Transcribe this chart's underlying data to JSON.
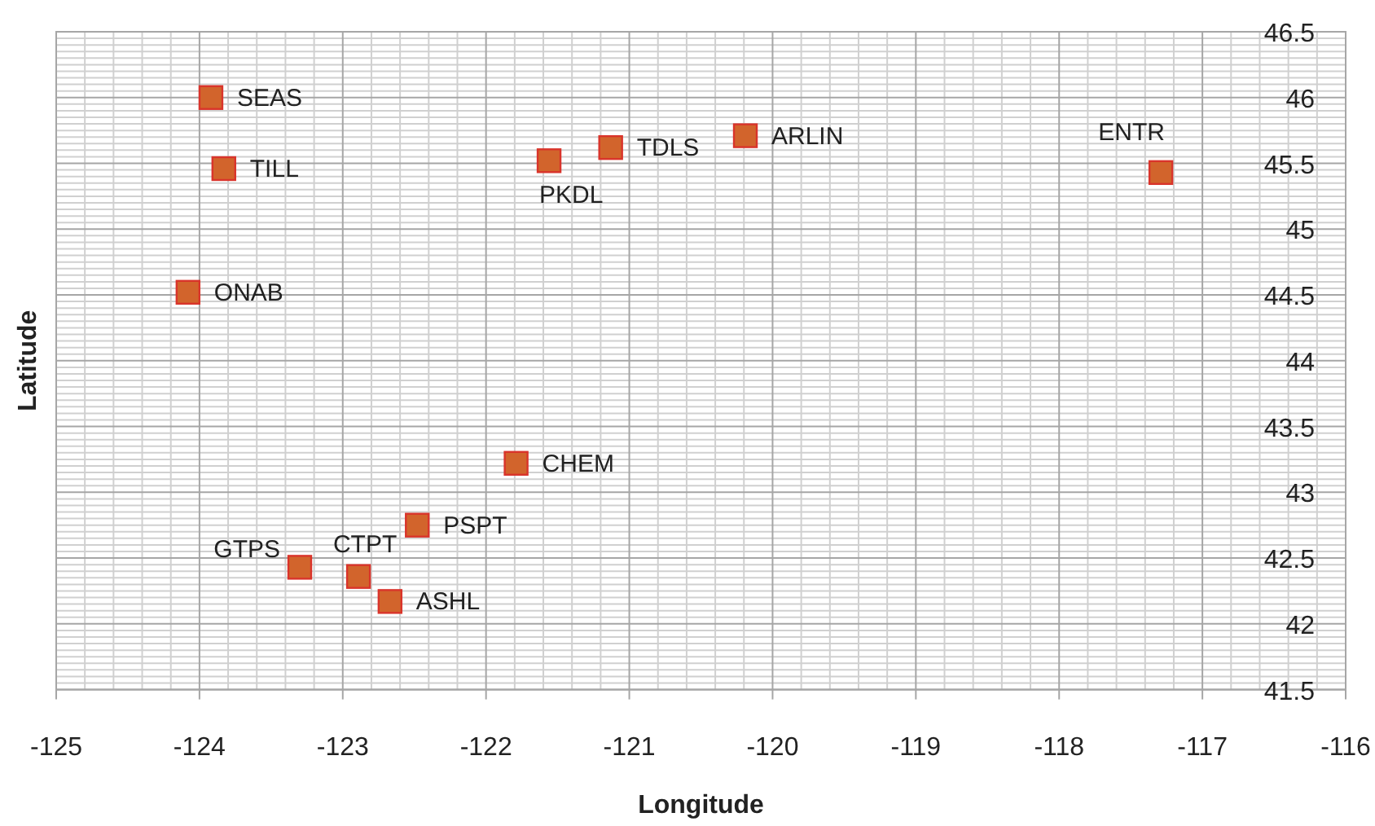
{
  "chart_data": {
    "type": "scatter",
    "xlabel": "Longitude",
    "ylabel": "Latitude",
    "xlim": [
      -125,
      -116
    ],
    "xticks": [
      -125,
      -124,
      -123,
      -122,
      -121,
      -120,
      -119,
      -118,
      -117,
      -116
    ],
    "ylim": [
      41.5,
      46.5
    ],
    "yticks": [
      41.5,
      42,
      42.5,
      43,
      43.5,
      44,
      44.5,
      45,
      45.5,
      46,
      46.5
    ],
    "grid": true,
    "marker": "square",
    "series": [
      {
        "color": "#d2642c",
        "x": [
          -123.92,
          -123.83,
          -124.08,
          -121.56,
          -121.13,
          -120.19,
          -117.29,
          -121.79,
          -122.48,
          -123.3,
          -122.89,
          -122.67
        ],
        "values": [
          46.0,
          45.46,
          44.52,
          45.52,
          45.62,
          45.71,
          45.43,
          43.22,
          42.75,
          42.43,
          42.36,
          42.17
        ]
      }
    ],
    "annotations": [
      {
        "text": "SEAS",
        "x": -123.92,
        "y": 46.0
      },
      {
        "text": "TILL",
        "x": -123.83,
        "y": 45.46
      },
      {
        "text": "ONAB",
        "x": -124.08,
        "y": 44.52
      },
      {
        "text": "PKDL",
        "x": -121.56,
        "y": 45.52
      },
      {
        "text": "TDLS",
        "x": -121.13,
        "y": 45.62
      },
      {
        "text": "ARLIN",
        "x": -120.19,
        "y": 45.71
      },
      {
        "text": "ENTR",
        "x": -117.29,
        "y": 45.43
      },
      {
        "text": "CHEM",
        "x": -121.79,
        "y": 43.22
      },
      {
        "text": "PSPT",
        "x": -122.48,
        "y": 42.75
      },
      {
        "text": "GTPS",
        "x": -123.3,
        "y": 42.43
      },
      {
        "text": "CTPT",
        "x": -122.89,
        "y": 42.36
      },
      {
        "text": "ASHL",
        "x": -122.67,
        "y": 42.17
      }
    ]
  }
}
